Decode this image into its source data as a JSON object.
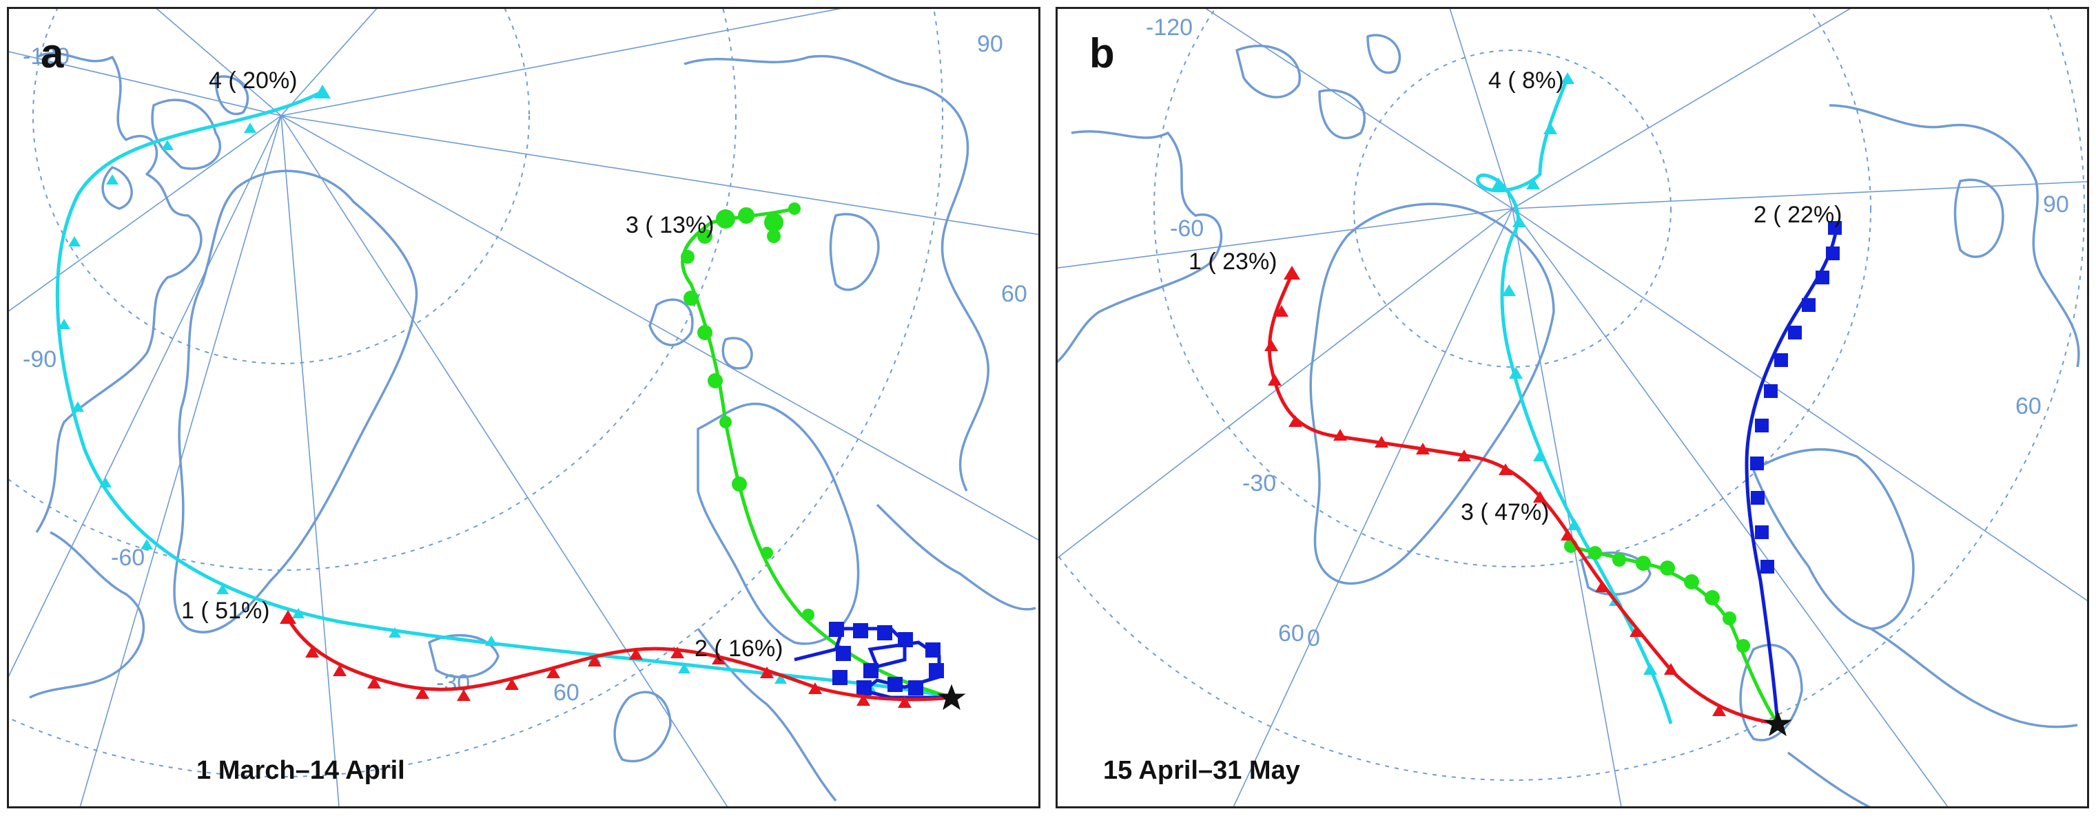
{
  "panels": [
    {
      "letter": "a",
      "date_range": "1 March–14 April",
      "lon_labels": [
        "-120",
        "-90",
        "-60",
        "-30",
        "60",
        "90",
        "60"
      ],
      "clusters": [
        {
          "id": 1,
          "label": "1 ( 51%)",
          "color": "#e8141b",
          "marker": "triangle"
        },
        {
          "id": 2,
          "label": "2 ( 16%)",
          "color": "#0f1ed6",
          "marker": "square"
        },
        {
          "id": 3,
          "label": "3 ( 13%)",
          "color": "#22e01b",
          "marker": "circle"
        },
        {
          "id": 4,
          "label": "4 ( 20%)",
          "color": "#1ed8e8",
          "marker": "triangle"
        }
      ]
    },
    {
      "letter": "b",
      "date_range": "15 April–31 May",
      "lon_labels": [
        "-120",
        "-60",
        "-30",
        "60",
        "0",
        "90",
        "60"
      ],
      "clusters": [
        {
          "id": 1,
          "label": "1 ( 23%)",
          "color": "#e8141b",
          "marker": "triangle"
        },
        {
          "id": 2,
          "label": "2 ( 22%)",
          "color": "#0f1ed6",
          "marker": "square"
        },
        {
          "id": 3,
          "label": "3 ( 47%)",
          "color": "#22e01b",
          "marker": "circle"
        },
        {
          "id": 4,
          "label": "4 (  8%)",
          "color": "#1ed8e8",
          "marker": "triangle"
        }
      ]
    }
  ],
  "colors": {
    "land_outline": "#6f9bd3",
    "graticule": "#6f9bd3",
    "frame": "#222222"
  }
}
